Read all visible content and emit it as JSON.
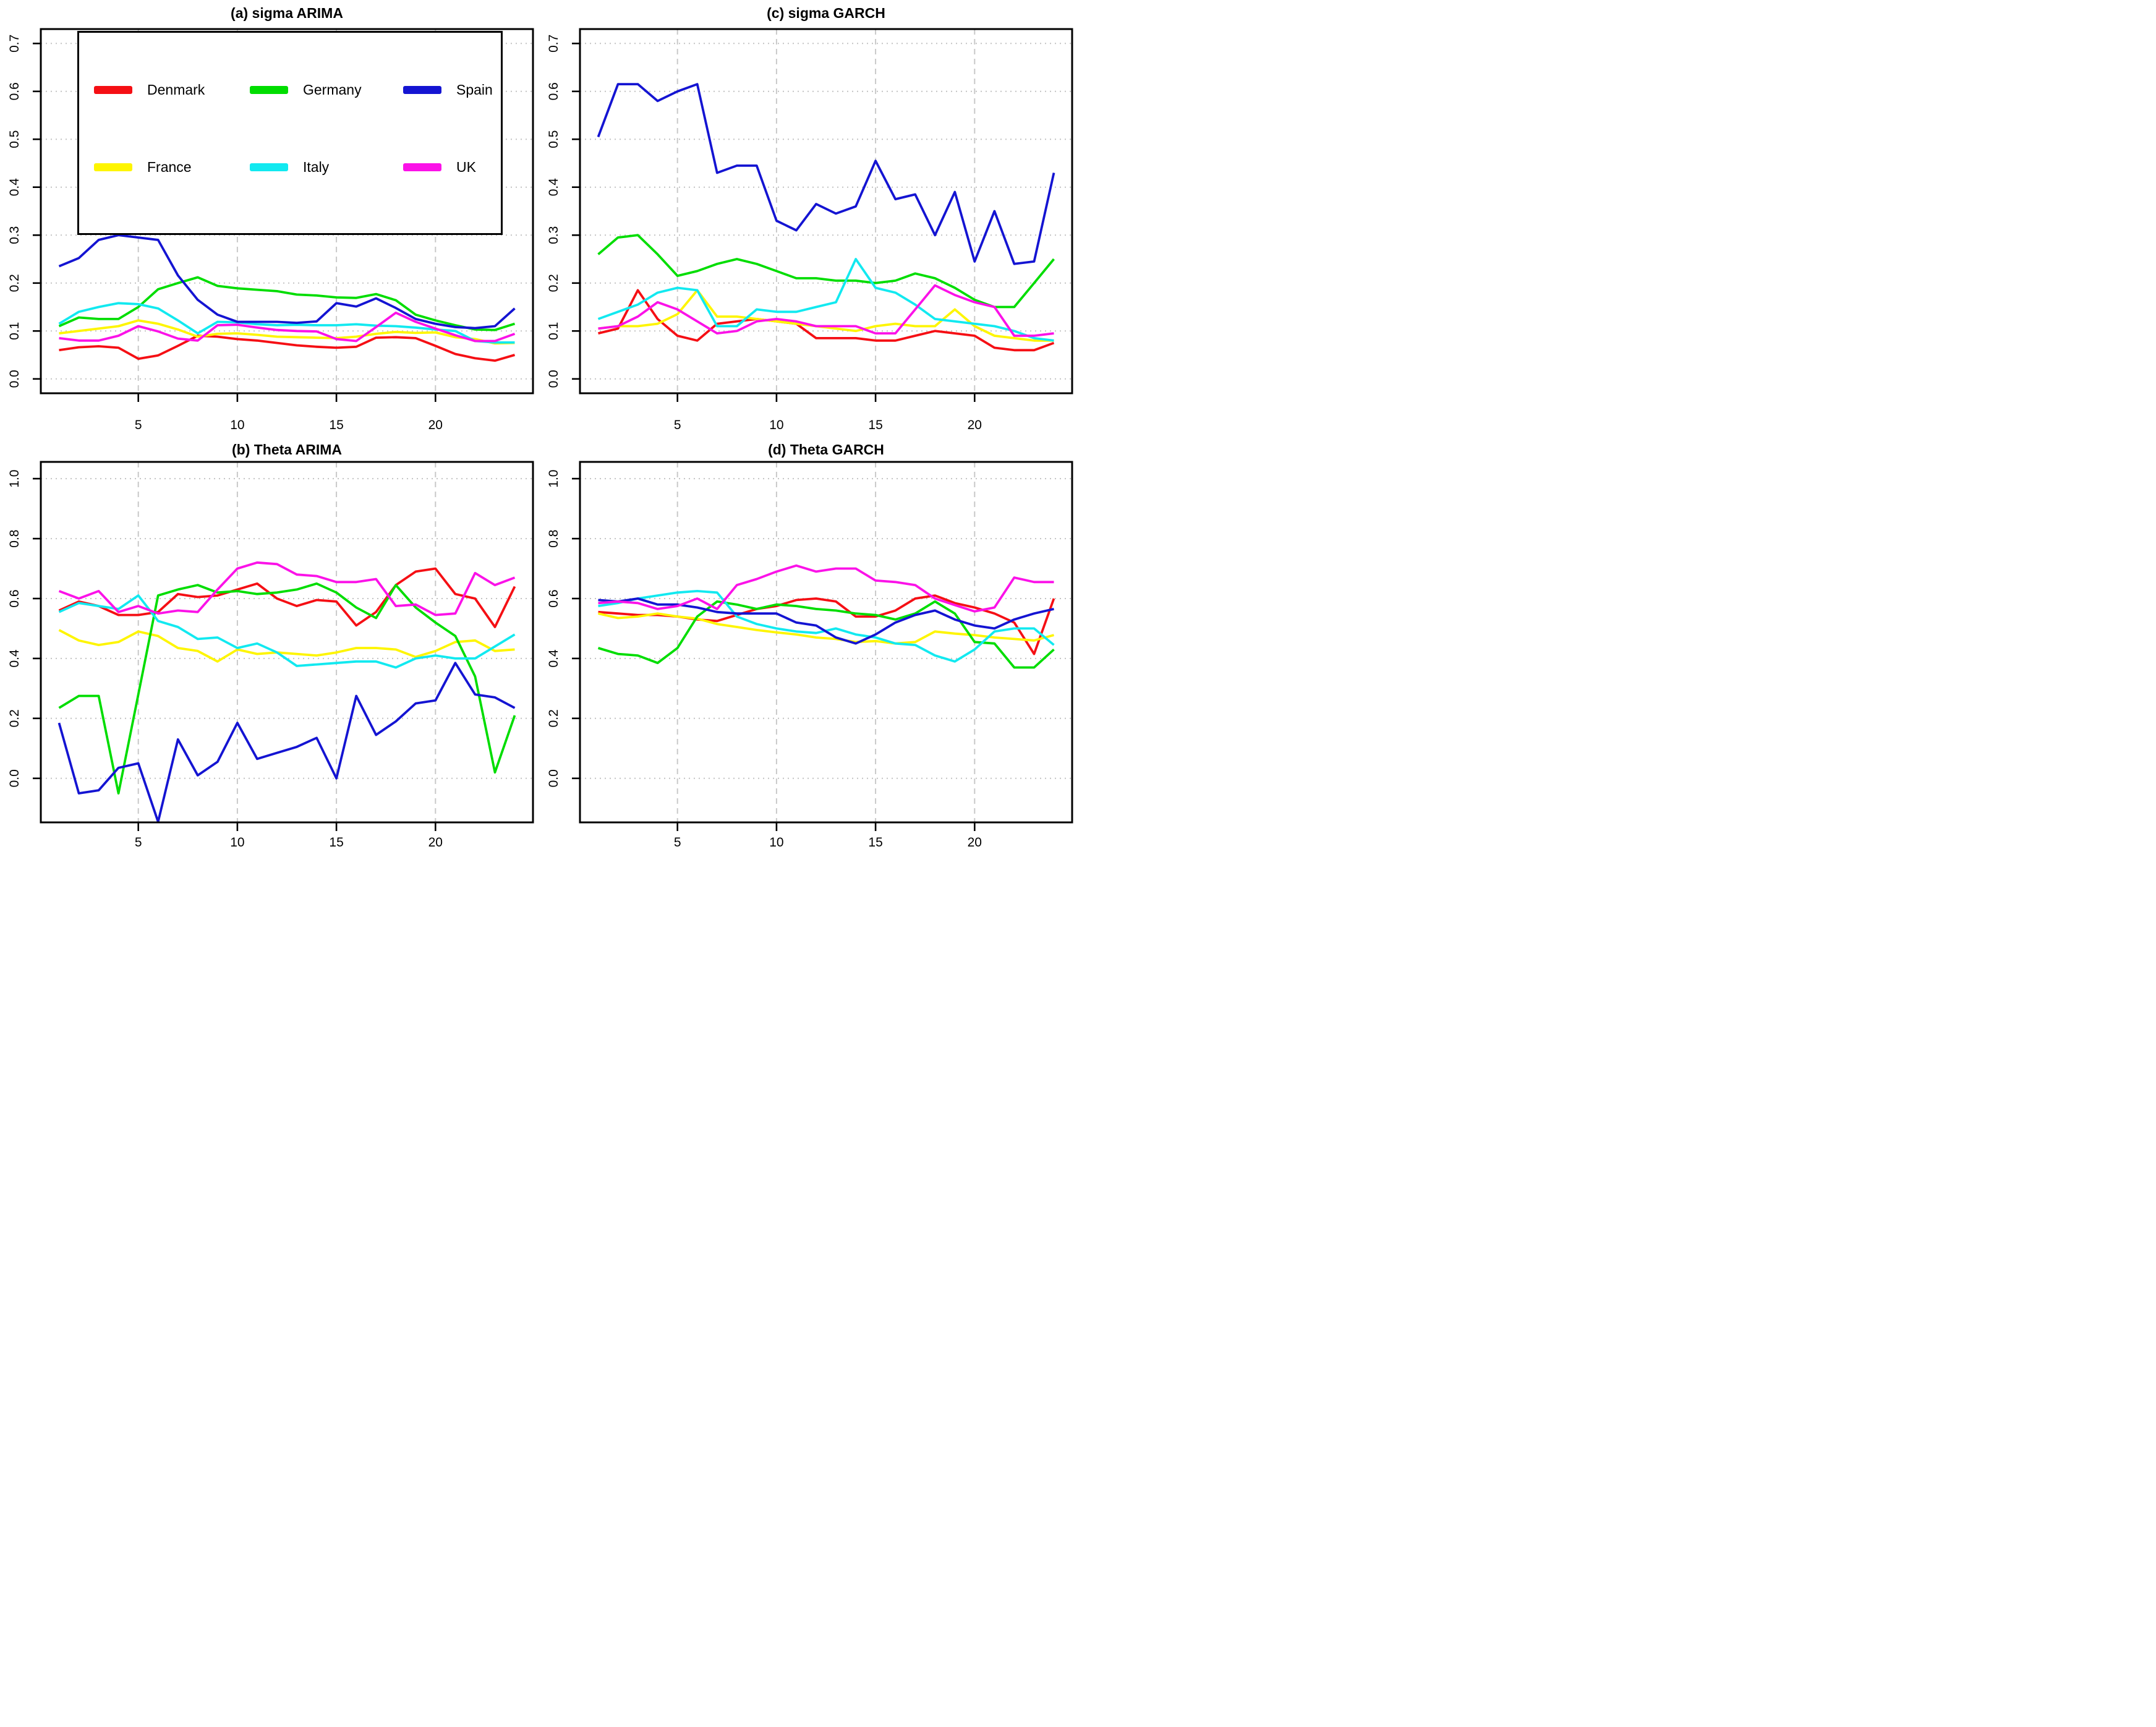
{
  "legend": {
    "items": [
      {
        "label": "Denmark",
        "color": "#f50f14"
      },
      {
        "label": "Germany",
        "color": "#00dd00"
      },
      {
        "label": "Spain",
        "color": "#1414d2"
      },
      {
        "label": "France",
        "color": "#fef500"
      },
      {
        "label": "Italy",
        "color": "#12e9f0"
      },
      {
        "label": "UK",
        "color": "#fb12e8"
      }
    ]
  },
  "chart_data": [
    {
      "id": "a",
      "type": "line",
      "title": "(a) sigma ARIMA",
      "xlabel": "",
      "ylabel": "",
      "x": [
        1,
        2,
        3,
        4,
        5,
        6,
        7,
        8,
        9,
        10,
        11,
        12,
        13,
        14,
        15,
        16,
        17,
        18,
        19,
        20,
        21,
        22,
        23,
        24
      ],
      "x_ticks": [
        5,
        10,
        15,
        20
      ],
      "y_ticks": [
        0,
        0.1,
        0.2,
        0.3,
        0.4,
        0.5,
        0.6,
        0.7
      ],
      "ylim": [
        -0.03,
        0.73
      ],
      "grid": true,
      "series": [
        {
          "name": "Denmark",
          "color": "#f50f14",
          "values": [
            0.06,
            0.066,
            0.068,
            0.065,
            0.042,
            0.049,
            0.069,
            0.09,
            0.088,
            0.083,
            0.08,
            0.075,
            0.07,
            0.067,
            0.065,
            0.067,
            0.086,
            0.087,
            0.085,
            0.069,
            0.052,
            0.043,
            0.038,
            0.05
          ]
        },
        {
          "name": "France",
          "color": "#fef500",
          "values": [
            0.095,
            0.1,
            0.105,
            0.11,
            0.122,
            0.115,
            0.103,
            0.088,
            0.094,
            0.095,
            0.092,
            0.088,
            0.087,
            0.086,
            0.085,
            0.088,
            0.094,
            0.098,
            0.096,
            0.097,
            0.087,
            0.083,
            0.074,
            0.075
          ]
        },
        {
          "name": "Germany",
          "color": "#00dd00",
          "values": [
            0.11,
            0.128,
            0.125,
            0.125,
            0.15,
            0.187,
            0.2,
            0.212,
            0.194,
            0.189,
            0.186,
            0.183,
            0.176,
            0.174,
            0.17,
            0.169,
            0.177,
            0.164,
            0.134,
            0.122,
            0.112,
            0.103,
            0.102,
            0.115
          ]
        },
        {
          "name": "Italy",
          "color": "#12e9f0",
          "values": [
            0.115,
            0.14,
            0.15,
            0.158,
            0.156,
            0.147,
            0.122,
            0.095,
            0.119,
            0.118,
            0.114,
            0.112,
            0.113,
            0.112,
            0.112,
            0.114,
            0.111,
            0.11,
            0.107,
            0.103,
            0.1,
            0.079,
            0.076,
            0.076
          ]
        },
        {
          "name": "Spain",
          "color": "#1414d2",
          "values": [
            0.235,
            0.252,
            0.29,
            0.3,
            0.295,
            0.29,
            0.216,
            0.165,
            0.134,
            0.119,
            0.119,
            0.119,
            0.117,
            0.12,
            0.158,
            0.151,
            0.168,
            0.148,
            0.125,
            0.115,
            0.108,
            0.106,
            0.11,
            0.147
          ]
        },
        {
          "name": "UK",
          "color": "#fb12e8",
          "values": [
            0.085,
            0.08,
            0.08,
            0.09,
            0.11,
            0.099,
            0.084,
            0.08,
            0.112,
            0.113,
            0.107,
            0.102,
            0.1,
            0.099,
            0.083,
            0.079,
            0.108,
            0.138,
            0.119,
            0.105,
            0.091,
            0.079,
            0.079,
            0.094
          ]
        }
      ]
    },
    {
      "id": "c",
      "type": "line",
      "title": "(c) sigma GARCH",
      "xlabel": "",
      "ylabel": "",
      "x": [
        1,
        2,
        3,
        4,
        5,
        6,
        7,
        8,
        9,
        10,
        11,
        12,
        13,
        14,
        15,
        16,
        17,
        18,
        19,
        20,
        21,
        22,
        23,
        24
      ],
      "x_ticks": [
        5,
        10,
        15,
        20
      ],
      "y_ticks": [
        0,
        0.1,
        0.2,
        0.3,
        0.4,
        0.5,
        0.6,
        0.7
      ],
      "ylim": [
        -0.03,
        0.73
      ],
      "grid": true,
      "series": [
        {
          "name": "Denmark",
          "color": "#f50f14",
          "values": [
            0.095,
            0.105,
            0.185,
            0.125,
            0.09,
            0.08,
            0.115,
            0.12,
            0.125,
            0.12,
            0.115,
            0.085,
            0.085,
            0.085,
            0.08,
            0.08,
            0.09,
            0.1,
            0.095,
            0.09,
            0.065,
            0.06,
            0.06,
            0.075
          ]
        },
        {
          "name": "France",
          "color": "#fef500",
          "values": [
            0.105,
            0.11,
            0.11,
            0.115,
            0.135,
            0.185,
            0.13,
            0.13,
            0.125,
            0.12,
            0.115,
            0.11,
            0.105,
            0.1,
            0.11,
            0.115,
            0.11,
            0.11,
            0.145,
            0.11,
            0.09,
            0.085,
            0.08,
            0.08
          ]
        },
        {
          "name": "Germany",
          "color": "#00dd00",
          "values": [
            0.26,
            0.295,
            0.3,
            0.26,
            0.215,
            0.225,
            0.24,
            0.25,
            0.24,
            0.225,
            0.21,
            0.21,
            0.205,
            0.205,
            0.2,
            0.205,
            0.22,
            0.21,
            0.19,
            0.165,
            0.15,
            0.15,
            0.2,
            0.25
          ]
        },
        {
          "name": "Italy",
          "color": "#12e9f0",
          "values": [
            0.125,
            0.14,
            0.155,
            0.18,
            0.19,
            0.185,
            0.11,
            0.11,
            0.145,
            0.14,
            0.14,
            0.15,
            0.16,
            0.25,
            0.19,
            0.18,
            0.155,
            0.125,
            0.12,
            0.115,
            0.11,
            0.1,
            0.085,
            0.08
          ]
        },
        {
          "name": "Spain",
          "color": "#1414d2",
          "values": [
            0.505,
            0.615,
            0.615,
            0.58,
            0.6,
            0.615,
            0.43,
            0.445,
            0.445,
            0.33,
            0.31,
            0.365,
            0.345,
            0.36,
            0.455,
            0.375,
            0.385,
            0.3,
            0.39,
            0.245,
            0.35,
            0.24,
            0.245,
            0.43
          ]
        },
        {
          "name": "UK",
          "color": "#fb12e8",
          "values": [
            0.105,
            0.11,
            0.13,
            0.16,
            0.145,
            0.12,
            0.095,
            0.1,
            0.12,
            0.125,
            0.12,
            0.11,
            0.11,
            0.11,
            0.095,
            0.095,
            0.145,
            0.195,
            0.175,
            0.16,
            0.15,
            0.09,
            0.09,
            0.095
          ]
        }
      ]
    },
    {
      "id": "b",
      "type": "line",
      "title": "(b) Theta ARIMA",
      "xlabel": "",
      "ylabel": "",
      "x": [
        1,
        2,
        3,
        4,
        5,
        6,
        7,
        8,
        9,
        10,
        11,
        12,
        13,
        14,
        15,
        16,
        17,
        18,
        19,
        20,
        21,
        22,
        23,
        24
      ],
      "x_ticks": [
        5,
        10,
        15,
        20
      ],
      "y_ticks": [
        0,
        0.2,
        0.4,
        0.6,
        0.8,
        1.0
      ],
      "ylim": [
        -0.147,
        1.056
      ],
      "grid": true,
      "series": [
        {
          "name": "Denmark",
          "color": "#f50f14",
          "values": [
            0.56,
            0.59,
            0.575,
            0.545,
            0.545,
            0.555,
            0.615,
            0.605,
            0.61,
            0.63,
            0.65,
            0.6,
            0.575,
            0.595,
            0.59,
            0.51,
            0.555,
            0.645,
            0.69,
            0.7,
            0.615,
            0.6,
            0.505,
            0.64
          ]
        },
        {
          "name": "France",
          "color": "#fef500",
          "values": [
            0.495,
            0.46,
            0.445,
            0.455,
            0.49,
            0.475,
            0.435,
            0.425,
            0.39,
            0.43,
            0.415,
            0.42,
            0.415,
            0.41,
            0.42,
            0.435,
            0.435,
            0.43,
            0.405,
            0.425,
            0.455,
            0.46,
            0.425,
            0.43
          ]
        },
        {
          "name": "Germany",
          "color": "#00dd00",
          "values": [
            0.235,
            0.275,
            0.275,
            -0.05,
            0.28,
            0.61,
            0.63,
            0.645,
            0.62,
            0.625,
            0.615,
            0.62,
            0.63,
            0.65,
            0.62,
            0.57,
            0.535,
            0.645,
            0.57,
            0.52,
            0.475,
            0.34,
            0.02,
            0.21
          ]
        },
        {
          "name": "Italy",
          "color": "#12e9f0",
          "values": [
            0.555,
            0.585,
            0.575,
            0.565,
            0.61,
            0.525,
            0.505,
            0.465,
            0.47,
            0.435,
            0.45,
            0.42,
            0.375,
            0.38,
            0.385,
            0.39,
            0.39,
            0.37,
            0.4,
            0.41,
            0.4,
            0.4,
            0.44,
            0.48
          ]
        },
        {
          "name": "Spain",
          "color": "#1414d2",
          "values": [
            0.185,
            -0.05,
            -0.04,
            0.035,
            0.05,
            -0.145,
            0.13,
            0.01,
            0.055,
            0.185,
            0.065,
            0.085,
            0.105,
            0.135,
            0.0,
            0.275,
            0.145,
            0.19,
            0.25,
            0.26,
            0.385,
            0.28,
            0.27,
            0.235
          ]
        },
        {
          "name": "UK",
          "color": "#fb12e8",
          "values": [
            0.625,
            0.6,
            0.625,
            0.555,
            0.575,
            0.55,
            0.56,
            0.555,
            0.63,
            0.7,
            0.72,
            0.715,
            0.68,
            0.675,
            0.655,
            0.655,
            0.665,
            0.575,
            0.58,
            0.545,
            0.55,
            0.685,
            0.645,
            0.67
          ]
        }
      ]
    },
    {
      "id": "d",
      "type": "line",
      "title": "(d) Theta GARCH",
      "xlabel": "",
      "ylabel": "",
      "x": [
        1,
        2,
        3,
        4,
        5,
        6,
        7,
        8,
        9,
        10,
        11,
        12,
        13,
        14,
        15,
        16,
        17,
        18,
        19,
        20,
        21,
        22,
        23,
        24
      ],
      "x_ticks": [
        5,
        10,
        15,
        20
      ],
      "y_ticks": [
        0,
        0.2,
        0.4,
        0.6,
        0.8,
        1.0
      ],
      "ylim": [
        -0.147,
        1.056
      ],
      "grid": true,
      "series": [
        {
          "name": "Denmark",
          "color": "#f50f14",
          "values": [
            0.555,
            0.55,
            0.545,
            0.545,
            0.54,
            0.53,
            0.525,
            0.545,
            0.565,
            0.575,
            0.595,
            0.6,
            0.59,
            0.54,
            0.54,
            0.56,
            0.6,
            0.61,
            0.585,
            0.57,
            0.55,
            0.52,
            0.415,
            0.6
          ]
        },
        {
          "name": "France",
          "color": "#fef500",
          "values": [
            0.55,
            0.535,
            0.54,
            0.55,
            0.54,
            0.533,
            0.515,
            0.505,
            0.495,
            0.487,
            0.48,
            0.47,
            0.465,
            0.455,
            0.458,
            0.45,
            0.455,
            0.49,
            0.483,
            0.478,
            0.47,
            0.465,
            0.46,
            0.478
          ]
        },
        {
          "name": "Germany",
          "color": "#00dd00",
          "values": [
            0.435,
            0.415,
            0.41,
            0.385,
            0.435,
            0.54,
            0.59,
            0.58,
            0.565,
            0.58,
            0.575,
            0.565,
            0.56,
            0.55,
            0.545,
            0.53,
            0.55,
            0.59,
            0.55,
            0.455,
            0.45,
            0.37,
            0.37,
            0.43
          ]
        },
        {
          "name": "Italy",
          "color": "#12e9f0",
          "values": [
            0.575,
            0.585,
            0.6,
            0.61,
            0.62,
            0.625,
            0.62,
            0.54,
            0.515,
            0.5,
            0.49,
            0.485,
            0.5,
            0.48,
            0.47,
            0.45,
            0.445,
            0.41,
            0.39,
            0.43,
            0.49,
            0.5,
            0.5,
            0.445
          ]
        },
        {
          "name": "Spain",
          "color": "#1414d2",
          "values": [
            0.595,
            0.59,
            0.6,
            0.58,
            0.58,
            0.57,
            0.555,
            0.55,
            0.55,
            0.55,
            0.52,
            0.51,
            0.47,
            0.45,
            0.48,
            0.52,
            0.545,
            0.56,
            0.53,
            0.51,
            0.5,
            0.53,
            0.55,
            0.565
          ]
        },
        {
          "name": "UK",
          "color": "#fb12e8",
          "values": [
            0.585,
            0.59,
            0.585,
            0.565,
            0.575,
            0.6,
            0.565,
            0.645,
            0.665,
            0.69,
            0.71,
            0.69,
            0.7,
            0.7,
            0.66,
            0.655,
            0.645,
            0.6,
            0.578,
            0.557,
            0.57,
            0.67,
            0.655,
            0.655
          ]
        }
      ]
    }
  ]
}
